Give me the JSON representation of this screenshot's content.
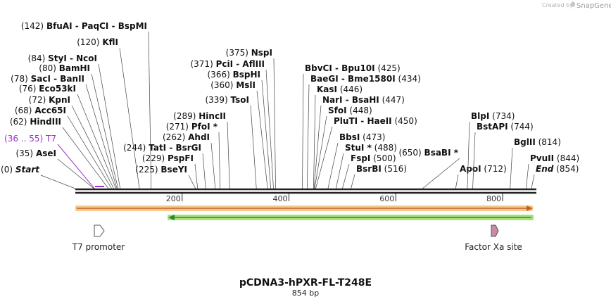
{
  "credit": {
    "prefix": "Created by",
    "brand": "SnapGene"
  },
  "plasmid": {
    "name": "pCDNA3-hPXR-FL-T248E",
    "length": "854 bp"
  },
  "sequence": {
    "length_bp": 854,
    "ticks": [
      "200",
      "400",
      "600",
      "800"
    ],
    "tick_values": [
      200,
      400,
      600,
      800
    ]
  },
  "sites": [
    {
      "pos": "(0)",
      "name": "Start",
      "italic": true,
      "bp": 0
    },
    {
      "pos": "(35)",
      "name": "AseI",
      "bp": 35
    },
    {
      "pos": "(36 .. 55)",
      "name": "T7",
      "violet": true,
      "bp": 36
    },
    {
      "pos": "(62)",
      "name": "HindIII",
      "bp": 62
    },
    {
      "pos": "(68)",
      "name": "Acc65I",
      "bp": 68
    },
    {
      "pos": "(72)",
      "name": "KpnI",
      "bp": 72
    },
    {
      "pos": "(76)",
      "name": "Eco53kI",
      "bp": 76
    },
    {
      "pos": "(78)",
      "name": "SacI  -  BanII",
      "bp": 78
    },
    {
      "pos": "(80)",
      "name": "BamHI",
      "bp": 80
    },
    {
      "pos": "(84)",
      "name": "StyI  -  NcoI",
      "bp": 84
    },
    {
      "pos": "(120)",
      "name": "KflI",
      "bp": 120
    },
    {
      "pos": "(142)",
      "name": "BfuAI  -  PaqCI  -  BspMI",
      "bp": 142
    },
    {
      "pos": "(225)",
      "name": "BseYI",
      "bp": 225
    },
    {
      "pos": "(229)",
      "name": "PspFI",
      "bp": 229
    },
    {
      "pos": "(244)",
      "name": "TatI  -  BsrGI",
      "bp": 244
    },
    {
      "pos": "(262)",
      "name": "AhdI",
      "bp": 262
    },
    {
      "pos": "(271)",
      "name": "PfoI *",
      "bp": 271
    },
    {
      "pos": "(289)",
      "name": "HincII",
      "bp": 289
    },
    {
      "pos": "(339)",
      "name": "TsoI",
      "bp": 339
    },
    {
      "pos": "(360)",
      "name": "MslI",
      "bp": 360
    },
    {
      "pos": "(366)",
      "name": "BspHI",
      "bp": 366
    },
    {
      "pos": "(371)",
      "name": "PciI  -  AflIII",
      "bp": 371
    },
    {
      "pos": "(375)",
      "name": "NspI",
      "bp": 375
    },
    {
      "pos": "(425)",
      "name": "BbvCI  -  Bpu10I",
      "bp": 425
    },
    {
      "pos": "(434)",
      "name": "BaeGI  -  Bme1580I",
      "bp": 434
    },
    {
      "pos": "(446)",
      "name": "KasI",
      "bp": 446
    },
    {
      "pos": "(447)",
      "name": "NarI  -  BsaHI",
      "bp": 447
    },
    {
      "pos": "(448)",
      "name": "SfoI",
      "bp": 448
    },
    {
      "pos": "(450)",
      "name": "PluTI  -  HaeII",
      "bp": 450
    },
    {
      "pos": "(473)",
      "name": "BbsI",
      "bp": 473
    },
    {
      "pos": "(488)",
      "name": "StuI *",
      "bp": 488
    },
    {
      "pos": "(500)",
      "name": "FspI",
      "bp": 500
    },
    {
      "pos": "(516)",
      "name": "BsrBI",
      "bp": 516
    },
    {
      "pos": "(650)",
      "name": "BsaBI *",
      "bp": 650
    },
    {
      "pos": "(712)",
      "name": "ApoI",
      "bp": 712
    },
    {
      "pos": "(734)",
      "name": "BlpI",
      "bp": 734
    },
    {
      "pos": "(744)",
      "name": "BstAPI",
      "bp": 744
    },
    {
      "pos": "(814)",
      "name": "BglII",
      "bp": 814
    },
    {
      "pos": "(844)",
      "name": "PvuII",
      "bp": 844
    },
    {
      "pos": "(854)",
      "name": "End",
      "italic": true,
      "bp": 854
    }
  ],
  "features": [
    {
      "name": "T7 promoter",
      "color": "#ffffff"
    },
    {
      "name": "Factor Xa site",
      "color": "#c98aa8"
    }
  ],
  "colors": {
    "backbone": "#222222",
    "orf_forward_line": "#c0622a",
    "orf_forward_fill": "#f6c98a",
    "orf_reverse_line": "#2c8a2c",
    "orf_reverse_fill": "#a8e07a",
    "primer": "#9933cc"
  }
}
